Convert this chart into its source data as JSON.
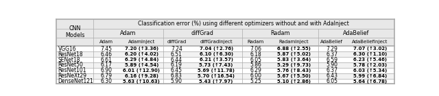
{
  "title": "Classification error (%) using different optimizers without and with AdaInject",
  "col_groups": [
    "Adam",
    "diffGrad",
    "Radam",
    "AdaBelief"
  ],
  "col_headers": [
    "Adam",
    "AdamInject",
    "diffGrad",
    "diffGradInject",
    "Radam",
    "RadamInject",
    "AdaBelief",
    "AdaBeliefInject"
  ],
  "row_headers": [
    "VGG16",
    "ResNet18",
    "SENet18",
    "ResNet50",
    "ResNet101",
    "ResNeXt29",
    "DenseNet121"
  ],
  "data": [
    [
      "7.45",
      "7.20 (↑3.36)",
      "7.24",
      "7.04 (↑2.76)",
      "7.06",
      "6.88 (↑2.55)",
      "7.29",
      "7.07 (↑3.02)"
    ],
    [
      "6.46",
      "6.20 (↑4.02)",
      "6.51",
      "6.10 (↑6.30)",
      "6.18",
      "5.87 (↑5.02)",
      "6.37",
      "6.30 (↑1.10)"
    ],
    [
      "6.61",
      "6.29 (↑4.84)",
      "6.44",
      "6.21 (↑3.57)",
      "6.05",
      "5.83 (↑3.64)",
      "6.59",
      "6.23 (↑5.46)"
    ],
    [
      "6.17",
      "5.89 (↑4.54)",
      "6.19",
      "5.73 (↑7.43)",
      "5.86",
      "5.29 (↑9.73)",
      "5.90",
      "5.78 (↑2.03)"
    ],
    [
      "6.90",
      "6.01 (↑12.90)",
      "6.45",
      "5.69 (↑11.78)",
      "6.29",
      "5.76 (↑8.43)",
      "6.37",
      "6.03 (↑5.34)"
    ],
    [
      "6.79",
      "6.16 (↑9.28)",
      "6.83",
      "5.70 (↑16.54)",
      "6.00",
      "5.67 (↑5.50)",
      "6.43",
      "5.99 (↑6.84)"
    ],
    [
      "6.30",
      "5.63 (↑10.63)",
      "5.90",
      "5.43 (↑7.97)",
      "5.25",
      "5.10 (↑2.86)",
      "6.05",
      "5.64 (↑6.78)"
    ]
  ],
  "bold_cols": [
    1,
    3,
    5,
    7
  ],
  "line_color": "#aaaaaa",
  "text_color": "#000000",
  "alt_row_bg": "#f2f2f2"
}
